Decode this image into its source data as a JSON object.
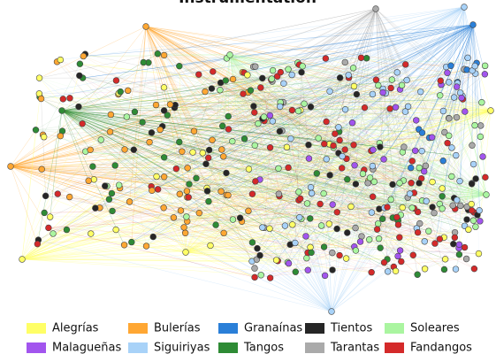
{
  "title": "Instrumentation",
  "legend": [
    {
      "label": "Alegrías",
      "color": "#ffff66"
    },
    {
      "label": "Bulerías",
      "color": "#ffa733"
    },
    {
      "label": "Granaínas",
      "color": "#2a7fd8"
    },
    {
      "label": "Tientos",
      "color": "#262626"
    },
    {
      "label": "Soleares",
      "color": "#aaf5a0"
    },
    {
      "label": "Malagueñas",
      "color": "#a255ee"
    },
    {
      "label": "Siguiriyas",
      "color": "#a8d2f8"
    },
    {
      "label": "Tangos",
      "color": "#2e8b35"
    },
    {
      "label": "Tarantas",
      "color": "#aaaaaa"
    },
    {
      "label": "Fandangos",
      "color": "#d42a2a"
    }
  ]
}
